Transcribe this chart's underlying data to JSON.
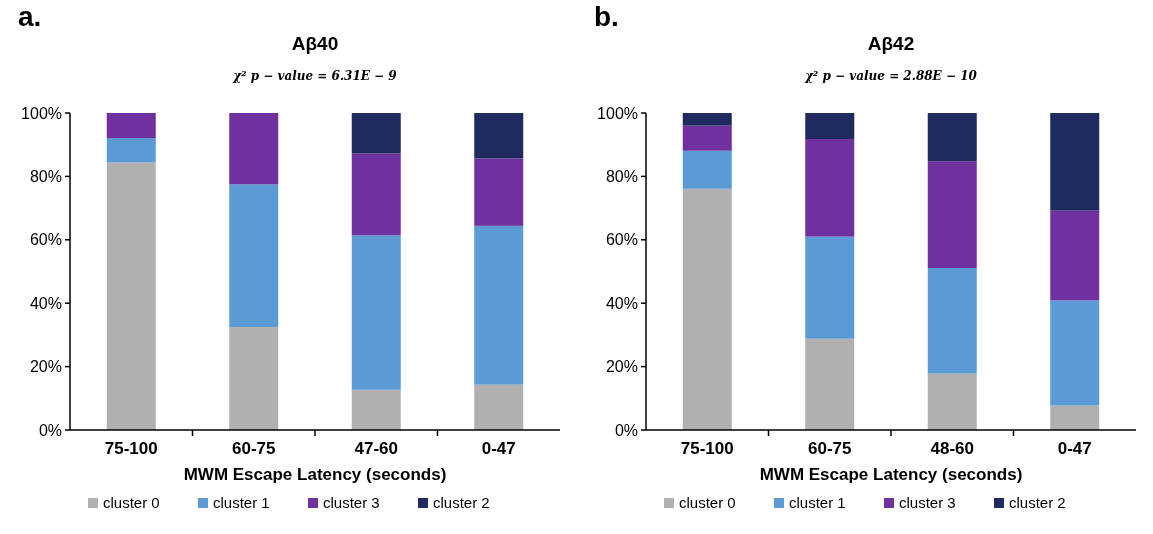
{
  "chart_data": [
    {
      "type": "bar",
      "title": "Aβ40",
      "subtitle": "χ² p − value = 6.31E − 9",
      "annotations": [
        "a."
      ],
      "xlabel": "MWM Escape Latency (seconds)",
      "categories": [
        "75-100",
        "60-75",
        "47-60",
        "0-47"
      ],
      "stacked": true,
      "legend": "bottom",
      "ylim": [
        0,
        100
      ],
      "yticks": [
        {
          "value": 0,
          "label": "0%"
        },
        {
          "value": 20,
          "label": "20%"
        },
        {
          "value": 40,
          "label": "40%"
        },
        {
          "value": 60,
          "label": "60%"
        },
        {
          "value": 80,
          "label": "80%"
        },
        {
          "value": 100,
          "label": "100%"
        }
      ],
      "series": [
        {
          "name": "cluster 0",
          "color": "#b1afb0",
          "values": [
            84.4,
            32.5,
            12.7,
            14.3
          ]
        },
        {
          "name": "cluster 1",
          "color": "#5b9bd5",
          "values": [
            7.7,
            45,
            48.7,
            50.1
          ]
        },
        {
          "name": "cluster 3",
          "color": "#7030a0",
          "values": [
            7.9,
            22.5,
            25.8,
            21.3
          ]
        },
        {
          "name": "cluster 2",
          "color": "#1f2a5e",
          "values": [
            0,
            0,
            12.8,
            14.3
          ]
        }
      ]
    },
    {
      "type": "bar",
      "title": "Aβ42",
      "subtitle": "χ² p − value = 2.88E − 10",
      "annotations": [
        "b."
      ],
      "xlabel": "MWM Escape Latency (seconds)",
      "categories": [
        "75-100",
        "60-75",
        "48-60",
        "0-47"
      ],
      "stacked": true,
      "legend": "bottom",
      "ylim": [
        0,
        100
      ],
      "yticks": [
        {
          "value": 0,
          "label": "0%"
        },
        {
          "value": 20,
          "label": "20%"
        },
        {
          "value": 40,
          "label": "40%"
        },
        {
          "value": 60,
          "label": "60%"
        },
        {
          "value": 80,
          "label": "80%"
        },
        {
          "value": 100,
          "label": "100%"
        }
      ],
      "series": [
        {
          "name": "cluster 0",
          "color": "#b1afb0",
          "values": [
            76.1,
            28.8,
            17.8,
            7.7
          ]
        },
        {
          "name": "cluster 1",
          "color": "#5b9bd5",
          "values": [
            12,
            32.2,
            33.3,
            33.2
          ]
        },
        {
          "name": "cluster 3",
          "color": "#7030a0",
          "values": [
            7.9,
            30.8,
            33.7,
            28.3
          ]
        },
        {
          "name": "cluster 2",
          "color": "#1f2a5e",
          "values": [
            4,
            8.2,
            15.2,
            30.8
          ]
        }
      ]
    }
  ]
}
